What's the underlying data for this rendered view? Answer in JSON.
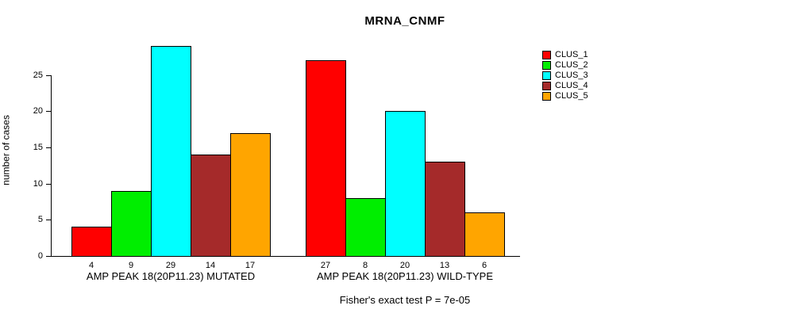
{
  "chart_data": {
    "type": "bar",
    "title": "MRNA_CNMF",
    "ylabel": "number of cases",
    "xlabel": "",
    "ylim": [
      0,
      29
    ],
    "yticks": [
      0,
      5,
      10,
      15,
      20,
      25
    ],
    "grid": false,
    "legend_position": "right",
    "categories": [
      "AMP PEAK 18(20P11.23) MUTATED",
      "AMP PEAK 18(20P11.23) WILD-TYPE"
    ],
    "series": [
      {
        "name": "CLUS_1",
        "color": "#FF0000",
        "values": [
          4,
          27
        ]
      },
      {
        "name": "CLUS_2",
        "color": "#00EE00",
        "values": [
          9,
          8
        ]
      },
      {
        "name": "CLUS_3",
        "color": "#00FFFF",
        "values": [
          29,
          20
        ]
      },
      {
        "name": "CLUS_4",
        "color": "#A52A2A",
        "values": [
          14,
          13
        ]
      },
      {
        "name": "CLUS_5",
        "color": "#FFA500",
        "values": [
          17,
          6
        ]
      }
    ],
    "bar_value_labels": [
      [
        4,
        9,
        29,
        14,
        17
      ],
      [
        27,
        8,
        20,
        13,
        6
      ]
    ],
    "caption": "Fisher's exact test P = 7e-05"
  }
}
